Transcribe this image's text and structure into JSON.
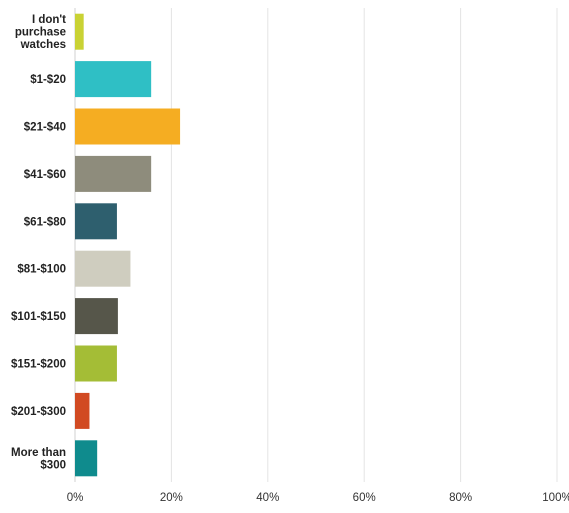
{
  "chart_data": {
    "type": "bar",
    "orientation": "horizontal",
    "categories": [
      "I don't purchase watches",
      "$1-$20",
      "$21-$40",
      "$41-$60",
      "$61-$80",
      "$81-$100",
      "$101-$150",
      "$151-$200",
      "$201-$300",
      "More than $300"
    ],
    "category_lines": [
      [
        "I don't",
        "purchase",
        "watches"
      ],
      [
        "$1-$20"
      ],
      [
        "$21-$40"
      ],
      [
        "$41-$60"
      ],
      [
        "$61-$80"
      ],
      [
        "$81-$100"
      ],
      [
        "$101-$150"
      ],
      [
        "$151-$200"
      ],
      [
        "$201-$300"
      ],
      [
        "More than",
        "$300"
      ]
    ],
    "values": [
      1.8,
      15.8,
      21.8,
      15.8,
      8.7,
      11.5,
      8.9,
      8.7,
      3.0,
      4.6
    ],
    "colors": [
      "#c9d234",
      "#2fbfc5",
      "#f5ad22",
      "#8e8c7c",
      "#2e5f6e",
      "#cfcdbf",
      "#56564a",
      "#a4bd36",
      "#d14a22",
      "#0f8b8d"
    ],
    "xlim": [
      0,
      100
    ],
    "xticks": [
      0,
      20,
      40,
      60,
      80,
      100
    ],
    "xtick_labels": [
      "0%",
      "20%",
      "40%",
      "60%",
      "80%",
      "100%"
    ],
    "grid": true,
    "title": "",
    "xlabel": "",
    "ylabel": ""
  }
}
